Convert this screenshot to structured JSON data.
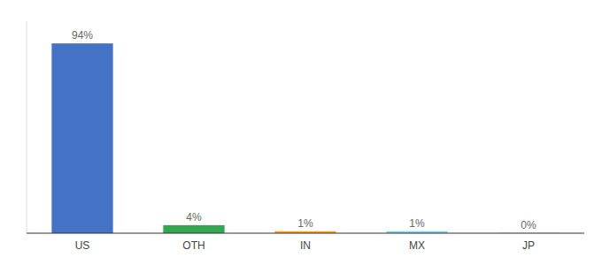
{
  "chart_data": {
    "type": "bar",
    "categories": [
      "US",
      "OTH",
      "IN",
      "MX",
      "JP"
    ],
    "values": [
      94,
      4,
      1,
      1,
      0.15
    ],
    "value_labels": [
      "94%",
      "4%",
      "1%",
      "1%",
      "0%"
    ],
    "colors": [
      "#4472C4",
      "#33A853",
      "#F4A230",
      "#87CEEB",
      "#87CEEB"
    ],
    "ylim": [
      0,
      105
    ],
    "data_labels": true,
    "tick_labels": "x"
  }
}
